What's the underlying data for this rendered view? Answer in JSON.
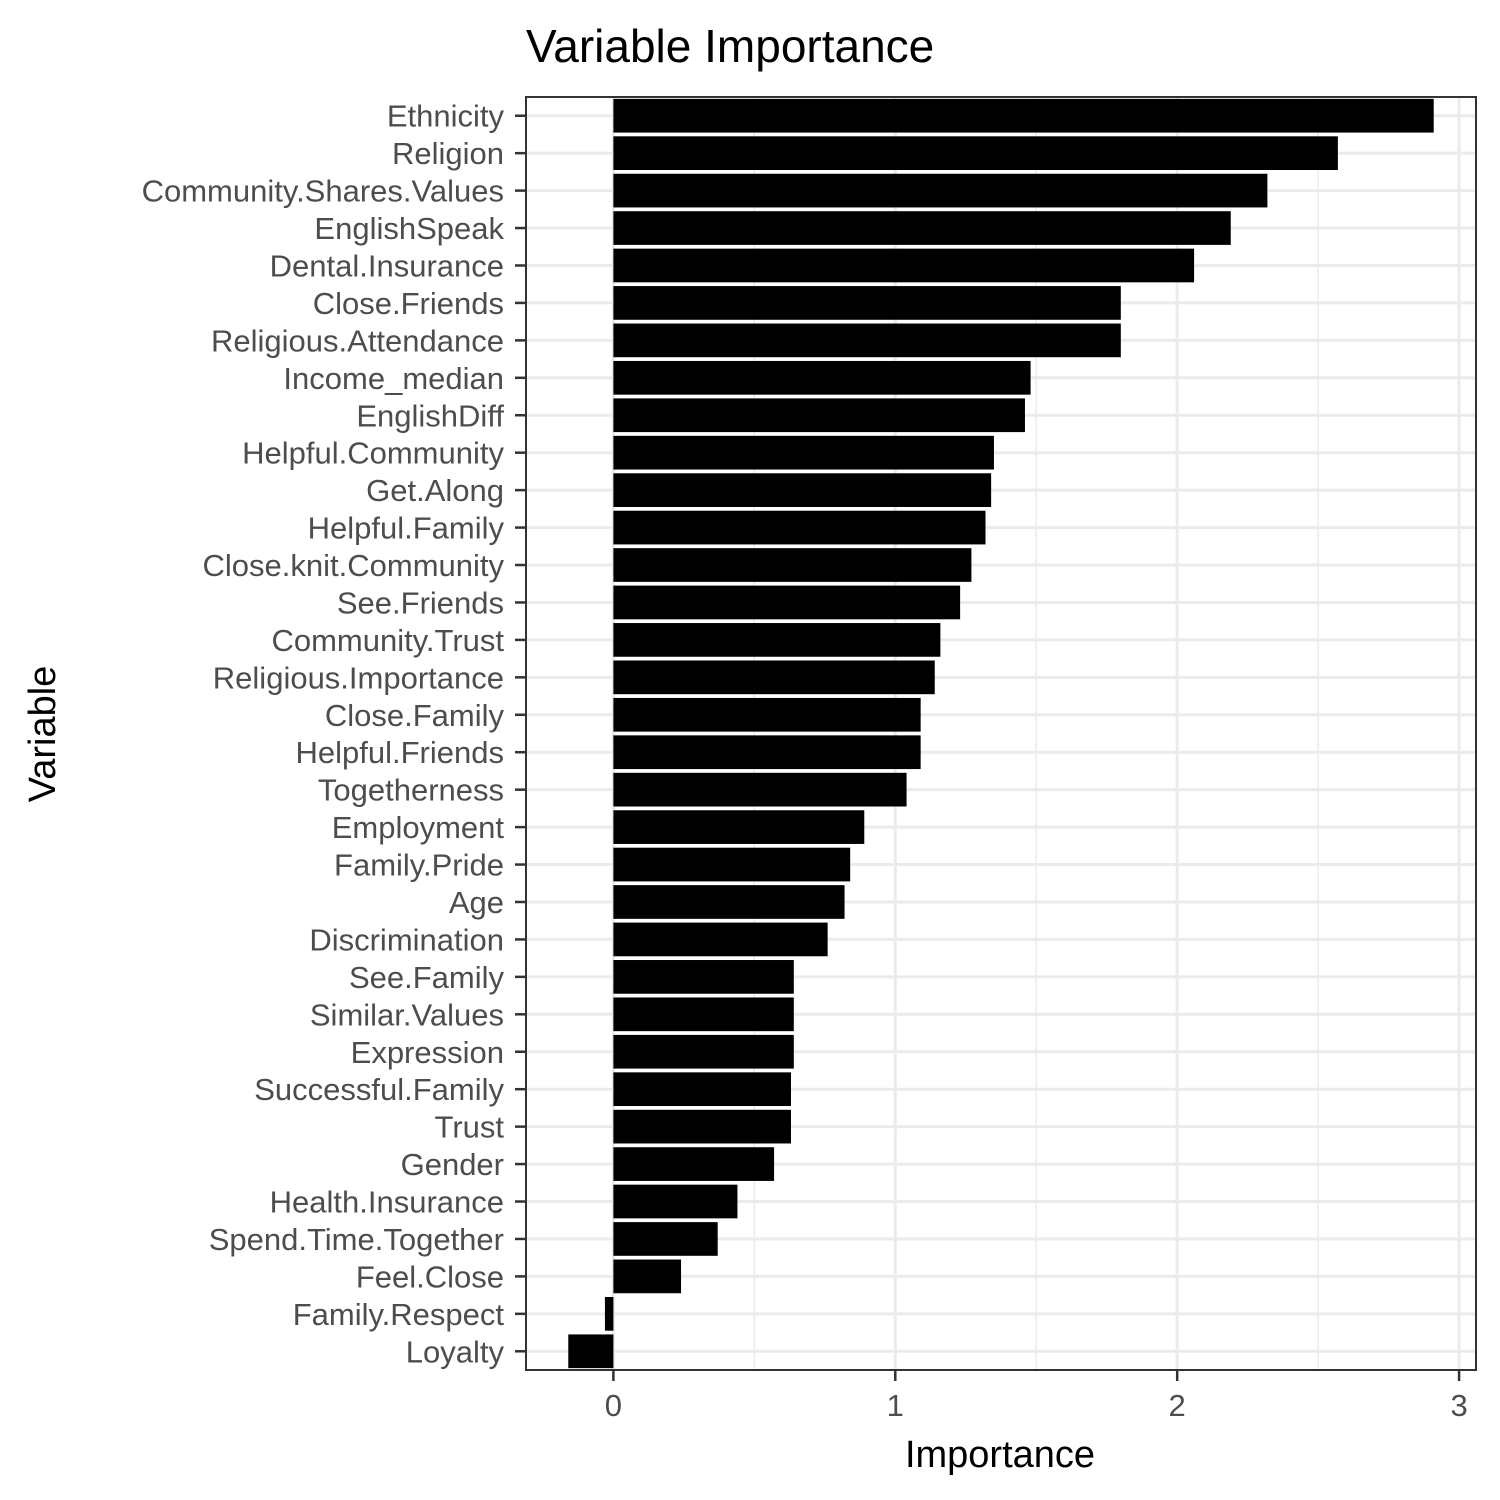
{
  "chart_data": {
    "type": "bar",
    "orientation": "horizontal",
    "title": "Variable Importance",
    "xlabel": "Importance",
    "ylabel": "Variable",
    "xlim": [
      -0.31,
      3.06
    ],
    "xticks": [
      0,
      1,
      2,
      3
    ],
    "grid": true,
    "legend": "none",
    "bar_color": "#000000",
    "categories": [
      "Ethnicity",
      "Religion",
      "Community.Shares.Values",
      "EnglishSpeak",
      "Dental.Insurance",
      "Close.Friends",
      "Religious.Attendance",
      "Income_median",
      "EnglishDiff",
      "Helpful.Community",
      "Get.Along",
      "Helpful.Family",
      "Close.knit.Community",
      "See.Friends",
      "Community.Trust",
      "Religious.Importance",
      "Close.Family",
      "Helpful.Friends",
      "Togetherness",
      "Employment",
      "Family.Pride",
      "Age",
      "Discrimination",
      "See.Family",
      "Similar.Values",
      "Expression",
      "Successful.Family",
      "Trust",
      "Gender",
      "Health.Insurance",
      "Spend.Time.Together",
      "Feel.Close",
      "Family.Respect",
      "Loyalty"
    ],
    "values": [
      2.91,
      2.57,
      2.32,
      2.19,
      2.06,
      1.8,
      1.8,
      1.48,
      1.46,
      1.35,
      1.34,
      1.32,
      1.27,
      1.23,
      1.16,
      1.14,
      1.09,
      1.09,
      1.04,
      0.89,
      0.84,
      0.82,
      0.76,
      0.64,
      0.64,
      0.64,
      0.63,
      0.63,
      0.57,
      0.44,
      0.37,
      0.24,
      -0.03,
      -0.16
    ]
  },
  "colors": {
    "panel_border": "#333333",
    "grid": "#ebebeb",
    "tick_text": "#4d4d4d",
    "tick_mark": "#333333"
  }
}
